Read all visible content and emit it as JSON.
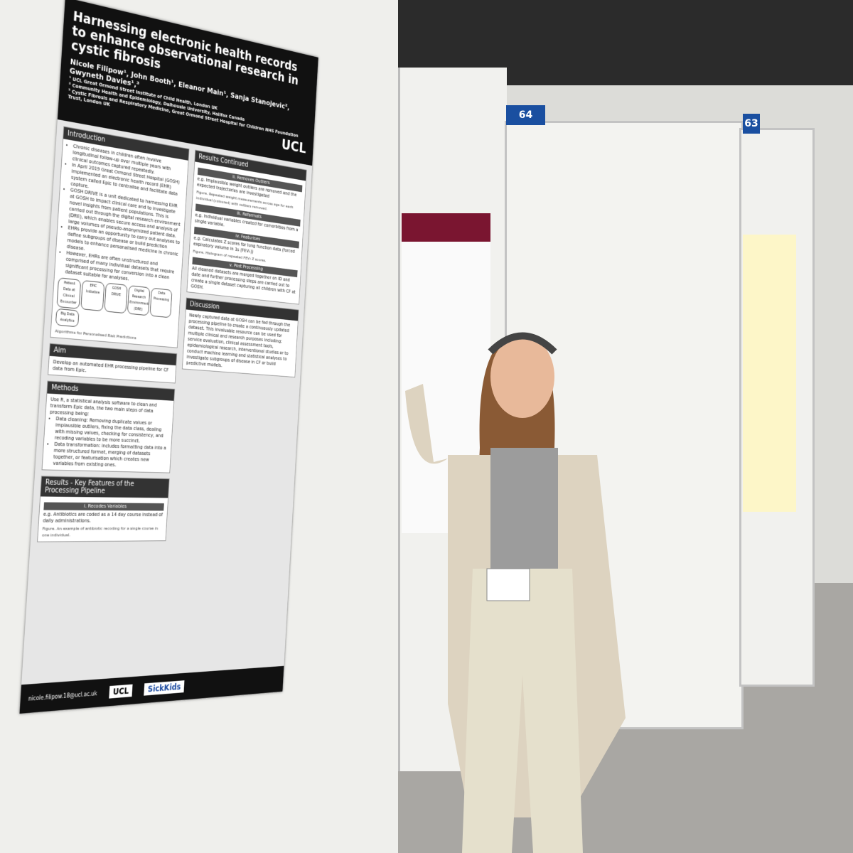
{
  "poster": {
    "title": "Harnessing electronic health records to enhance observational research in cystic fibrosis",
    "authors": "Nicole Filipow¹, John Booth¹, Eleanor Main¹, Sanja Stanojevic², Gwyneth Davies¹,³",
    "affiliations": [
      "¹ UCL Great Ormond Street Institute of Child Health, London UK",
      "² Community Health and Epidemiology, Dalhousie University, Halifax Canada",
      "³ Cystic Fibrosis and Respiratory Medicine, Great Ormond Street Hospital for Children NHS Foundation Trust, London UK"
    ],
    "logo": "UCL",
    "left_column": [
      {
        "heading": "Introduction",
        "bullets": [
          "Chronic diseases in children often involve longitudinal follow-up over multiple years with clinical outcomes captured repeatedly.",
          "In April 2019 Great Ormond Street Hospital (GOSH) implemented an electronic health record (EHR) system called Epic to centralise and facilitate data capture.",
          "GOSH DRIVE is a unit dedicated to harnessing EHR at GOSH to impact clinical care and to investigate novel insights from patient populations. This is carried out through the digital research environment (DRE), which enables secure access and analysis of large volumes of pseudo-anonymized patient data.",
          "EHRs provide an opportunity to carry out analyses to define subgroups of disease or build prediction models to enhance personalised medicine in chronic disease.",
          "However, EHRs are often unstructured and comprised of many individual datasets that require significant processing for conversion into a clean dataset suitable for analyses."
        ],
        "figure": [
          "Patient Data at Clinical Encounter",
          "EPIC Initiative",
          "GOSH DRIVE",
          "Digital Research Environment (DRE)",
          "Data Processing",
          "Big Data Analytics"
        ],
        "caption": "Algorithms for Personalised Risk Predictions"
      },
      {
        "heading": "Aim",
        "text": "Develop an automated EHR processing pipeline for CF data from Epic."
      },
      {
        "heading": "Methods",
        "text": "Use R, a statistical analysis software to clean and transform Epic data, the two main steps of data processing being:",
        "bullets": [
          "Data cleaning: Removing duplicate values or implausible outliers, fixing the data class, dealing with missing values, checking for consistency, and recoding variables to be more succinct.",
          "Data transformation: includes formatting data into a more structured format, merging of datasets together, or featurisation which creates new variables from existing ones."
        ]
      },
      {
        "heading": "Results - Key Features of the Processing Pipeline",
        "sub": "i. Recodes Variables",
        "text": "e.g. Antibiotics are coded as a 14 day course instead of daily administrations.",
        "caption": "Figure. An example of antibiotic recoding for a single course in one individual."
      }
    ],
    "right_column": [
      {
        "heading": "Results Continued",
        "parts": [
          {
            "sub": "ii. Removes Outliers",
            "text": "e.g. Implausible weight outliers are removed and the expected trajectories are investigated",
            "caption": "Figure. Repeated weight measurements across age for each individual (coloured) with outliers removed."
          },
          {
            "sub": "iii. Reformats",
            "text": "e.g. individual variables created for comorbities from a single variable."
          },
          {
            "sub": "iv. Featurises",
            "text": "e.g. Calculates Z scores for lung function data (forced expiratory volume in 1s (FEV₁))",
            "caption": "Figure. Histogram of repeated FEV₁ Z scores."
          },
          {
            "sub": "v. Post Processing",
            "text": "All cleaned datasets are merged together on ID and date and further processing steps are carried out to create a single dataset capturing all children with CF at GOSH."
          }
        ]
      },
      {
        "heading": "Discussion",
        "text": "Newly captured data at GOSH can be fed through the processing pipeline to create a continuously updated dataset. This invaluable resource can be used for multiple clinical and research purposes including: service evaluation, clinical assessment tools, epidemiological research, interventional studies or to conduct machine learning and statistical analyses to investigate subgroups of disease in CF or build predictive models."
      }
    ],
    "email": "nicole.filipow.18@ucl.ac.uk",
    "footer_logos": [
      "UCL",
      "SickKids"
    ]
  },
  "boards": [
    "64",
    "63"
  ]
}
